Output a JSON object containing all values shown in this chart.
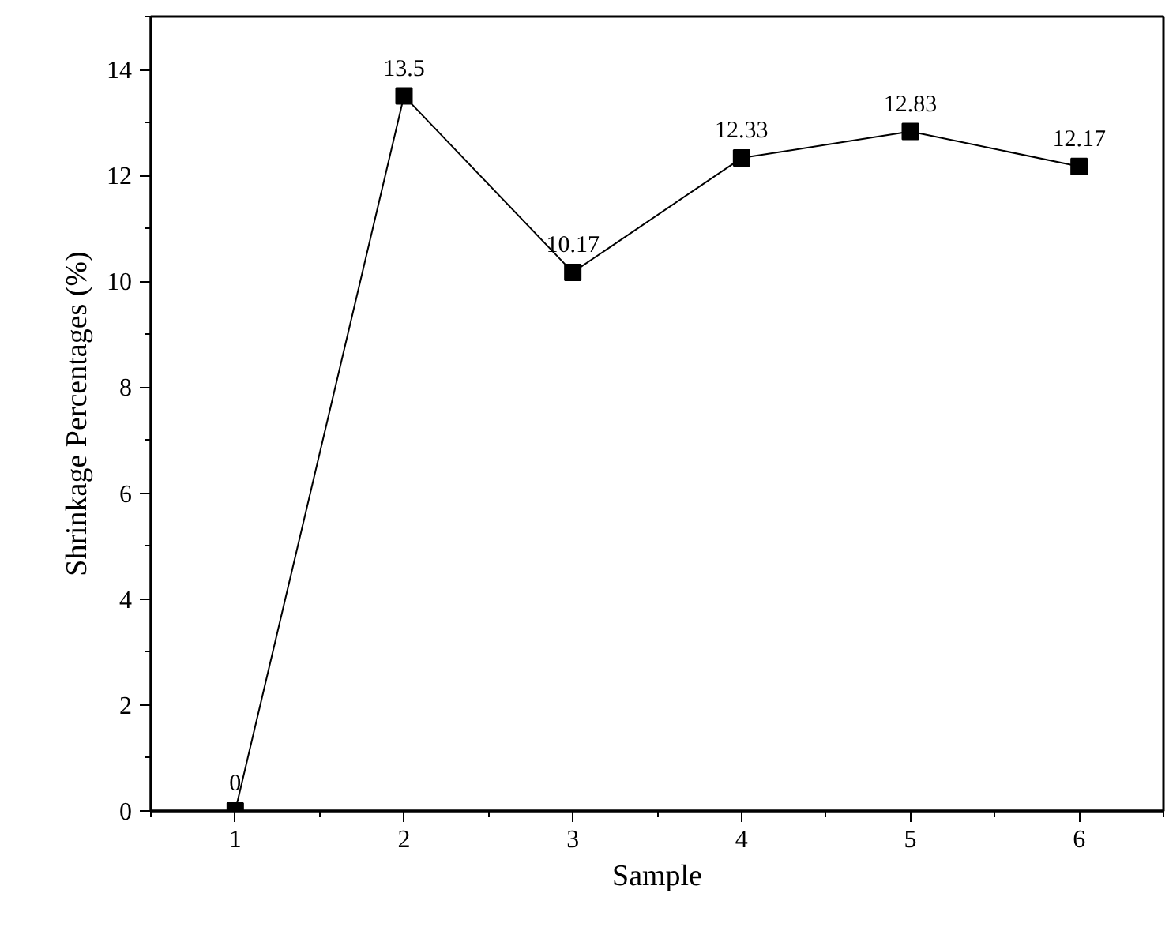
{
  "chart_data": {
    "type": "line",
    "xlabel": "Sample",
    "ylabel": "Shrinkage Percentages (%)",
    "x": [
      1,
      2,
      3,
      4,
      5,
      6
    ],
    "series": [
      {
        "color": "#000000",
        "values": [
          0,
          13.5,
          10.17,
          12.33,
          12.83,
          12.17
        ]
      }
    ],
    "xlim": [
      0.5,
      6.5
    ],
    "xticks": [
      1,
      2,
      3,
      4,
      5,
      6
    ],
    "ylim": [
      0,
      15
    ],
    "yticks": [
      0,
      2,
      4,
      6,
      8,
      10,
      12,
      14
    ],
    "marker": "square",
    "line_style": "solid",
    "data_labels": true
  }
}
